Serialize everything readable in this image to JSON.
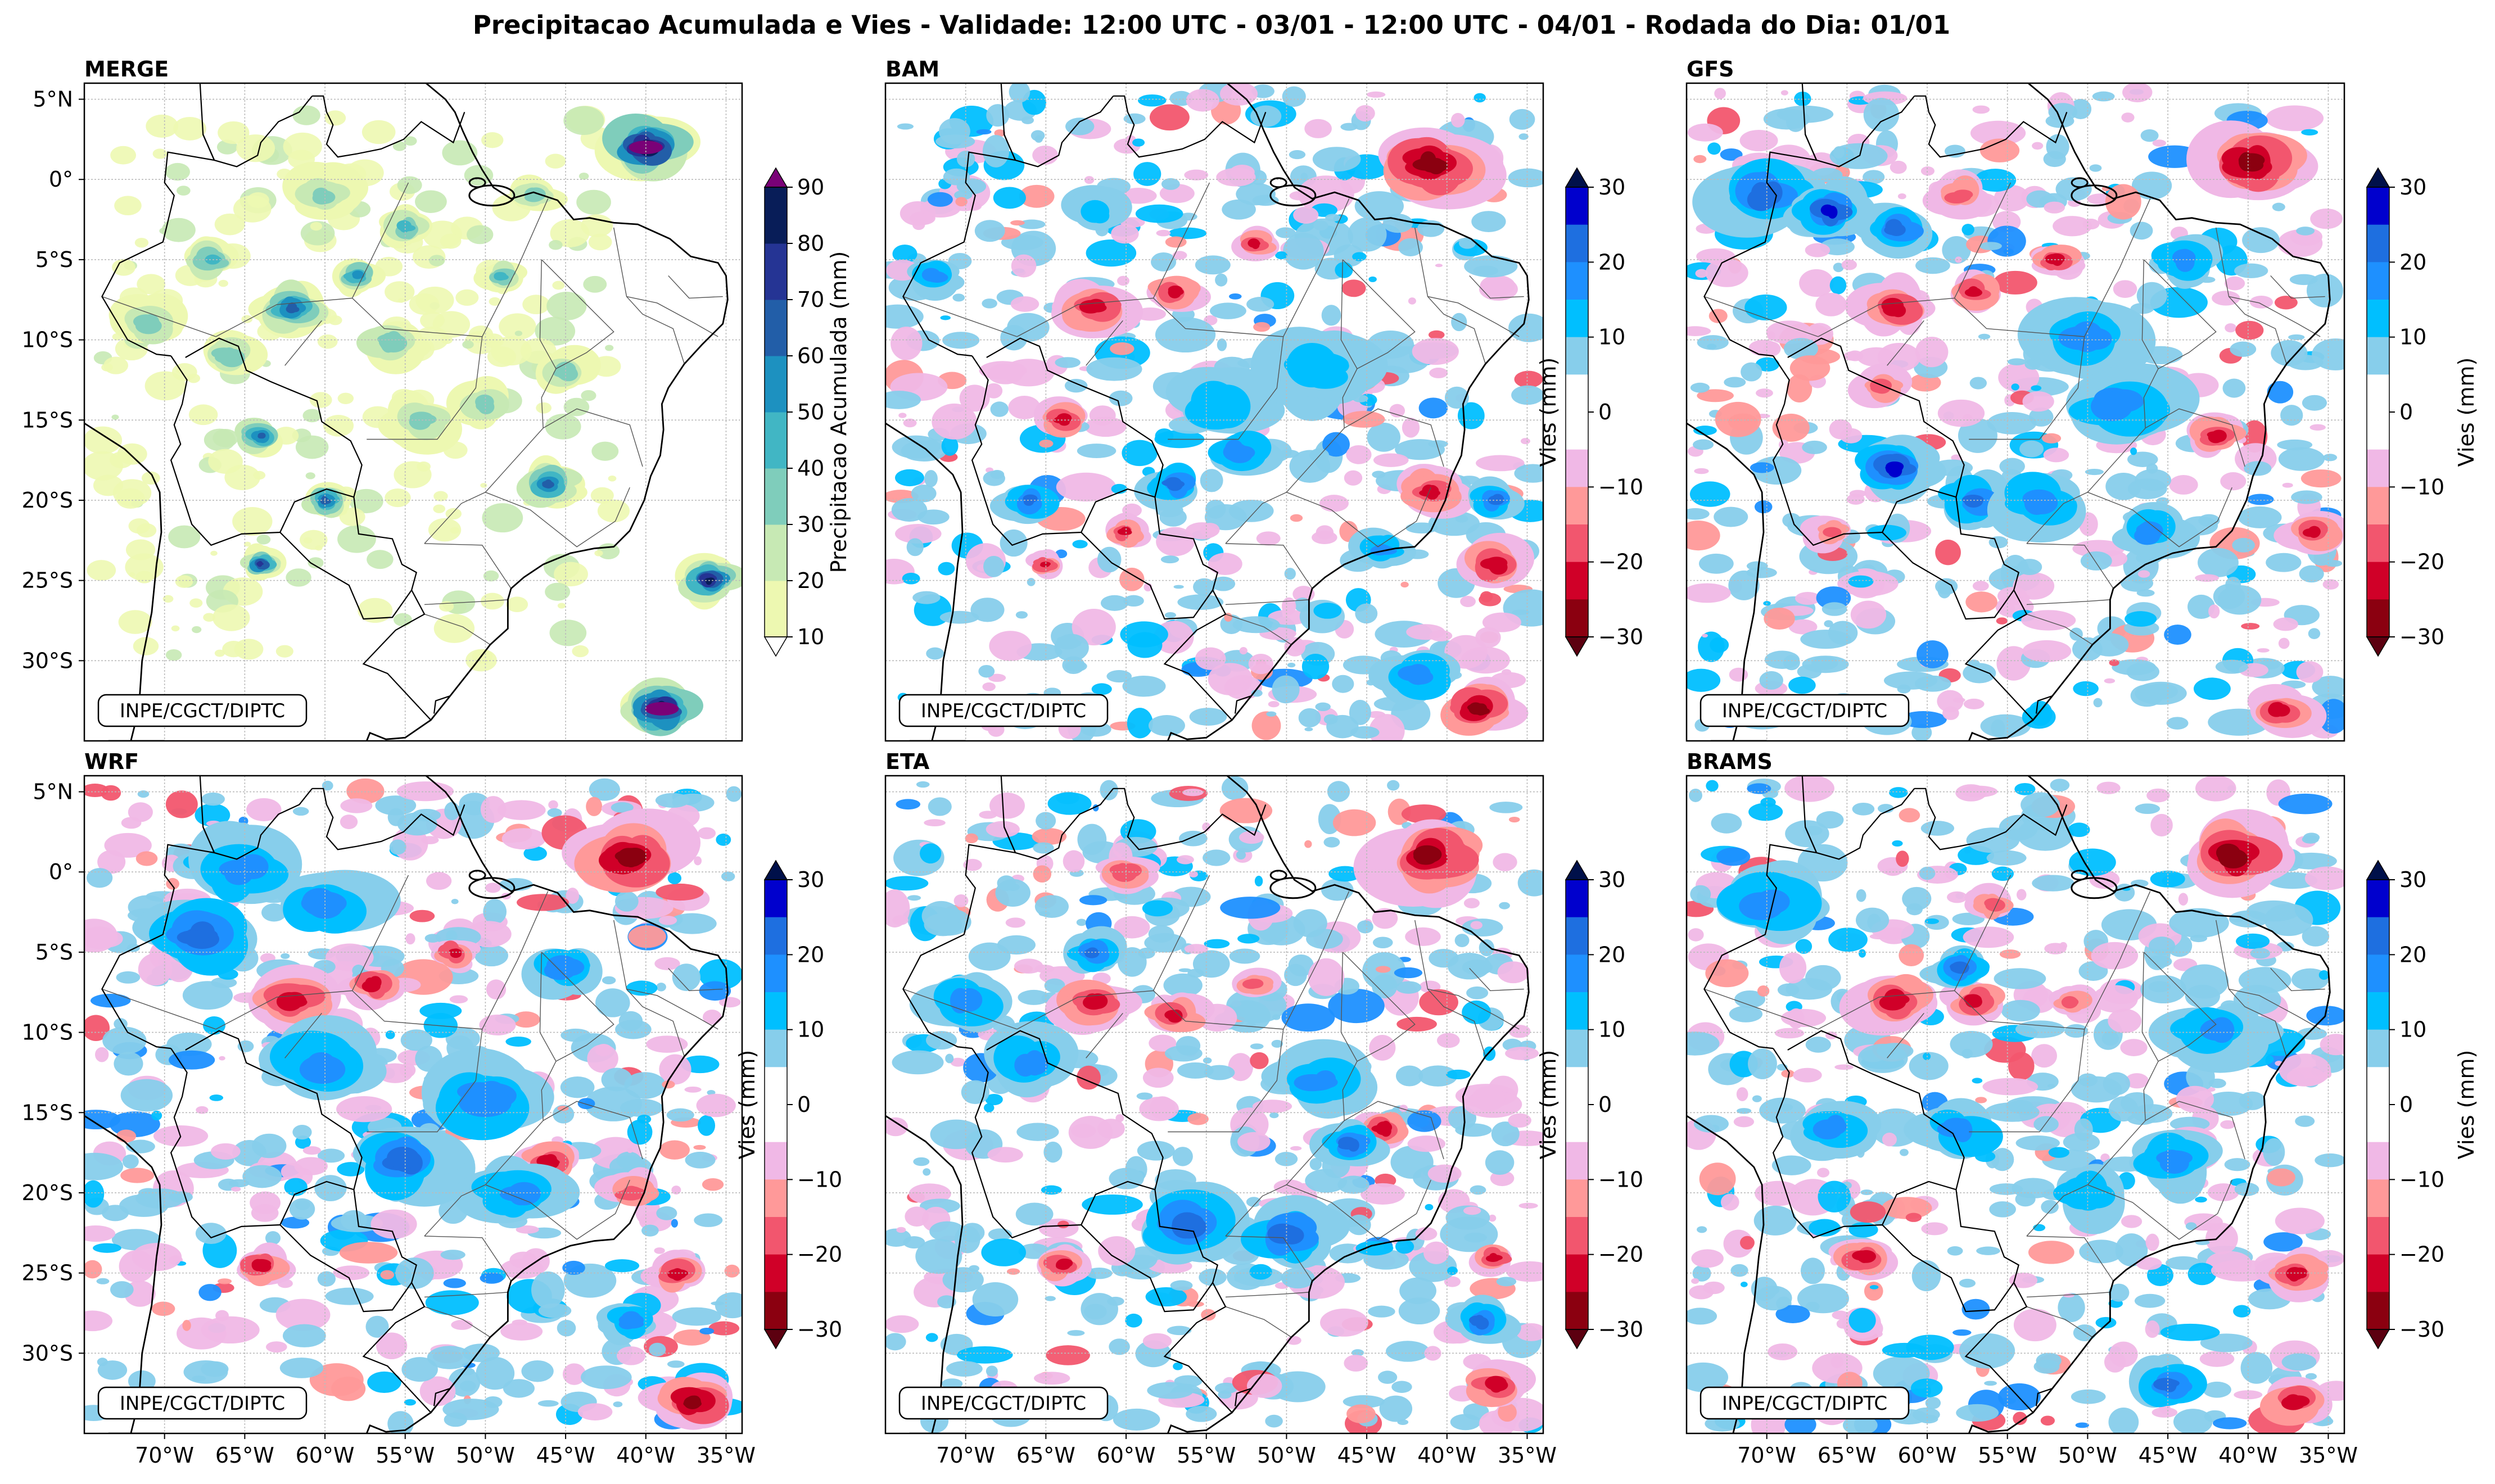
{
  "title": "Precipitacao Acumulada e Vies - Validade: 12:00 UTC - 03/01 - 12:00 UTC - 04/01 - Rodada do Dia: 01/01",
  "credit": "INPE/CGCT/DIPTC",
  "panels": [
    {
      "name": "MERGE",
      "kind": "precip"
    },
    {
      "name": "BAM",
      "kind": "bias"
    },
    {
      "name": "GFS",
      "kind": "bias"
    },
    {
      "name": "WRF",
      "kind": "bias"
    },
    {
      "name": "ETA",
      "kind": "bias"
    },
    {
      "name": "BRAMS",
      "kind": "bias"
    }
  ],
  "lat_ticks": [
    "5°N",
    "0°",
    "5°S",
    "10°S",
    "15°S",
    "20°S",
    "25°S",
    "30°S"
  ],
  "lon_ticks": [
    "70°W",
    "65°W",
    "60°W",
    "55°W",
    "50°W",
    "45°W",
    "40°W",
    "35°W"
  ],
  "precip_colorbar": {
    "label": "Precipitacao Acumulada (mm)",
    "ticks": [
      "10",
      "20",
      "30",
      "40",
      "50",
      "60",
      "70",
      "80",
      "90"
    ],
    "colors": [
      "#edf8b1",
      "#c7e9b4",
      "#7fcdbb",
      "#41b6c4",
      "#1d91c0",
      "#225ea8",
      "#253494",
      "#081d58"
    ],
    "under": "#ffffff",
    "over": "#7a0177"
  },
  "bias_colorbar": {
    "label": "Vies (mm)",
    "ticks": [
      "30",
      "20",
      "10",
      "0",
      "−10",
      "−20",
      "−30"
    ],
    "colors_top_down": [
      "#0000cd",
      "#1e6fe0",
      "#1e90ff",
      "#00bfff",
      "#87ceeb",
      "#ffffff",
      "#ffffff",
      "#f0b8e6",
      "#ff9999",
      "#f2566e",
      "#d00028",
      "#8b0010"
    ],
    "over": "#00104a",
    "under": "#5c0010"
  },
  "map_colors": {
    "land_outline": "#000000",
    "state_outline": "#555555",
    "grid": "#bbbbbb"
  }
}
